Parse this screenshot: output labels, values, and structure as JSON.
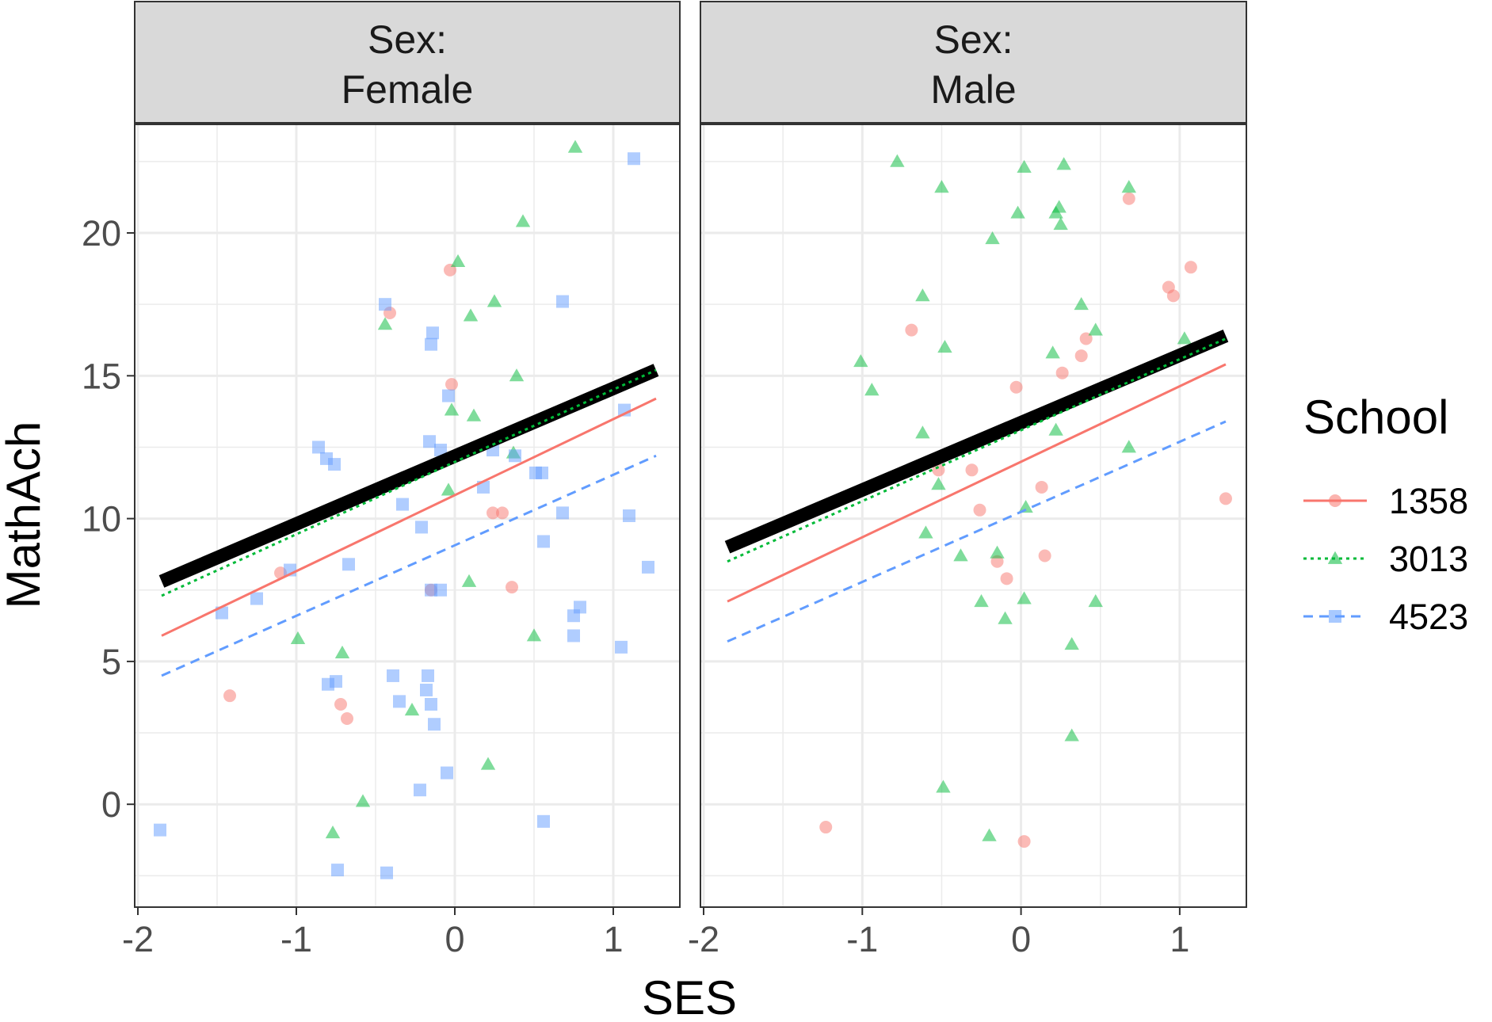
{
  "chart_data": {
    "type": "scatter",
    "xlabel": "SES",
    "ylabel": "MathAch",
    "xlim": [
      -2.02,
      1.42
    ],
    "ylim": [
      -3.6,
      23.8
    ],
    "x_ticks": [
      -2,
      -1,
      0,
      1
    ],
    "x_tick_labels": [
      "-2",
      "-1",
      "0",
      "1"
    ],
    "y_ticks": [
      0,
      5,
      10,
      15,
      20
    ],
    "y_tick_labels": [
      "0",
      "5",
      "10",
      "15",
      "20"
    ],
    "grid": true,
    "legend": {
      "title": "School",
      "position": "right",
      "entries": [
        {
          "label": "1358",
          "color": "#F8766D",
          "shape": "circle",
          "linetype": "solid"
        },
        {
          "label": "3013",
          "color": "#00BA38",
          "shape": "triangle",
          "linetype": "dotted"
        },
        {
          "label": "4523",
          "color": "#619CFF",
          "shape": "square",
          "linetype": "dashed"
        }
      ]
    },
    "overall_line_color": "#000000",
    "panels": [
      {
        "strip": [
          "Sex:",
          "Female"
        ],
        "points": {
          "1358": [
            [
              -1.42,
              3.8
            ],
            [
              -1.1,
              8.1
            ],
            [
              -0.41,
              17.2
            ],
            [
              -0.72,
              3.5
            ],
            [
              -0.68,
              3.0
            ],
            [
              -0.03,
              18.7
            ],
            [
              -0.02,
              14.7
            ],
            [
              0.24,
              10.2
            ],
            [
              0.3,
              10.2
            ],
            [
              0.36,
              7.6
            ],
            [
              -0.15,
              7.5
            ]
          ],
          "3013": [
            [
              0.76,
              23
            ],
            [
              0.43,
              20.4
            ],
            [
              0.02,
              19
            ],
            [
              0.1,
              17.1
            ],
            [
              0.25,
              17.6
            ],
            [
              -0.44,
              16.8
            ],
            [
              0.39,
              15
            ],
            [
              -0.02,
              13.8
            ],
            [
              0.12,
              13.6
            ],
            [
              0.37,
              12.3
            ],
            [
              -0.04,
              11
            ],
            [
              -0.99,
              5.8
            ],
            [
              -0.71,
              5.3
            ],
            [
              -0.27,
              3.3
            ],
            [
              0.09,
              7.8
            ],
            [
              0.5,
              5.9
            ],
            [
              0.21,
              1.4
            ],
            [
              -0.58,
              0.1
            ],
            [
              -0.77,
              -1.0
            ]
          ],
          "4523": [
            [
              1.13,
              22.6
            ],
            [
              0.68,
              17.6
            ],
            [
              -0.44,
              17.5
            ],
            [
              -0.14,
              16.5
            ],
            [
              -0.15,
              16.1
            ],
            [
              -0.04,
              14.3
            ],
            [
              1.07,
              13.8
            ],
            [
              -0.86,
              12.5
            ],
            [
              -0.81,
              12.1
            ],
            [
              -0.76,
              11.9
            ],
            [
              -0.16,
              12.7
            ],
            [
              -0.09,
              12.4
            ],
            [
              0.24,
              12.4
            ],
            [
              0.38,
              12.2
            ],
            [
              0.51,
              11.6
            ],
            [
              0.55,
              11.6
            ],
            [
              0.18,
              11.1
            ],
            [
              -0.33,
              10.5
            ],
            [
              0.68,
              10.2
            ],
            [
              1.1,
              10.1
            ],
            [
              -0.21,
              9.7
            ],
            [
              0.56,
              9.2
            ],
            [
              1.22,
              8.3
            ],
            [
              -0.67,
              8.4
            ],
            [
              -1.04,
              8.2
            ],
            [
              -1.25,
              7.2
            ],
            [
              -0.15,
              7.5
            ],
            [
              -0.09,
              7.5
            ],
            [
              0.79,
              6.9
            ],
            [
              0.75,
              6.6
            ],
            [
              0.75,
              5.9
            ],
            [
              1.05,
              5.5
            ],
            [
              -1.47,
              6.7
            ],
            [
              -0.8,
              4.2
            ],
            [
              -0.75,
              4.3
            ],
            [
              -0.39,
              4.5
            ],
            [
              -0.35,
              3.6
            ],
            [
              -0.17,
              4.5
            ],
            [
              -0.18,
              4.0
            ],
            [
              -0.15,
              3.5
            ],
            [
              -0.13,
              2.8
            ],
            [
              -0.22,
              0.5
            ],
            [
              -0.05,
              1.1
            ],
            [
              0.56,
              -0.6
            ],
            [
              -1.86,
              -0.9
            ],
            [
              -0.74,
              -2.3
            ],
            [
              -0.43,
              -2.4
            ]
          ]
        },
        "lines": {
          "overall": {
            "x": [
              -1.85,
              1.27
            ],
            "y": [
              7.8,
              15.2
            ]
          },
          "1358": {
            "x": [
              -1.85,
              1.27
            ],
            "y": [
              5.9,
              14.2
            ]
          },
          "3013": {
            "x": [
              -1.85,
              1.27
            ],
            "y": [
              7.3,
              15.2
            ]
          },
          "4523": {
            "x": [
              -1.85,
              1.27
            ],
            "y": [
              4.5,
              12.2
            ]
          }
        }
      },
      {
        "strip": [
          "Sex:",
          "Male"
        ],
        "points": {
          "1358": [
            [
              0.68,
              21.2
            ],
            [
              1.07,
              18.8
            ],
            [
              0.93,
              18.1
            ],
            [
              0.96,
              17.8
            ],
            [
              -0.69,
              16.6
            ],
            [
              0.41,
              16.3
            ],
            [
              0.38,
              15.7
            ],
            [
              0.26,
              15.1
            ],
            [
              -0.03,
              14.6
            ],
            [
              -0.52,
              11.7
            ],
            [
              -0.31,
              11.7
            ],
            [
              0.13,
              11.1
            ],
            [
              1.29,
              10.7
            ],
            [
              -0.26,
              10.3
            ],
            [
              0.15,
              8.7
            ],
            [
              -0.15,
              8.5
            ],
            [
              -0.09,
              7.9
            ],
            [
              -1.23,
              -0.8
            ],
            [
              0.02,
              -1.3
            ]
          ],
          "3013": [
            [
              -0.78,
              22.5
            ],
            [
              0.27,
              22.4
            ],
            [
              0.02,
              22.3
            ],
            [
              -0.5,
              21.6
            ],
            [
              0.68,
              21.6
            ],
            [
              0.24,
              20.9
            ],
            [
              0.22,
              20.7
            ],
            [
              -0.02,
              20.7
            ],
            [
              0.25,
              20.3
            ],
            [
              -0.18,
              19.8
            ],
            [
              -0.62,
              17.8
            ],
            [
              0.38,
              17.5
            ],
            [
              0.47,
              16.6
            ],
            [
              1.03,
              16.3
            ],
            [
              0.2,
              15.8
            ],
            [
              -0.48,
              16
            ],
            [
              -1.01,
              15.5
            ],
            [
              -0.94,
              14.5
            ],
            [
              -0.62,
              13
            ],
            [
              0.22,
              13.1
            ],
            [
              0.68,
              12.5
            ],
            [
              -0.52,
              11.2
            ],
            [
              0.03,
              10.4
            ],
            [
              -0.6,
              9.5
            ],
            [
              -0.15,
              8.8
            ],
            [
              -0.38,
              8.7
            ],
            [
              -0.25,
              7.1
            ],
            [
              -0.1,
              6.5
            ],
            [
              0.02,
              7.2
            ],
            [
              0.47,
              7.1
            ],
            [
              0.32,
              5.6
            ],
            [
              0.32,
              2.4
            ],
            [
              -0.49,
              0.6
            ],
            [
              -0.2,
              -1.1
            ]
          ],
          "4523": []
        },
        "lines": {
          "overall": {
            "x": [
              -1.85,
              1.29
            ],
            "y": [
              9.0,
              16.4
            ]
          },
          "1358": {
            "x": [
              -1.85,
              1.29
            ],
            "y": [
              7.1,
              15.4
            ]
          },
          "3013": {
            "x": [
              -1.85,
              1.29
            ],
            "y": [
              8.5,
              16.3
            ]
          },
          "4523": {
            "x": [
              -1.85,
              1.29
            ],
            "y": [
              5.7,
              13.4
            ]
          }
        }
      }
    ]
  }
}
